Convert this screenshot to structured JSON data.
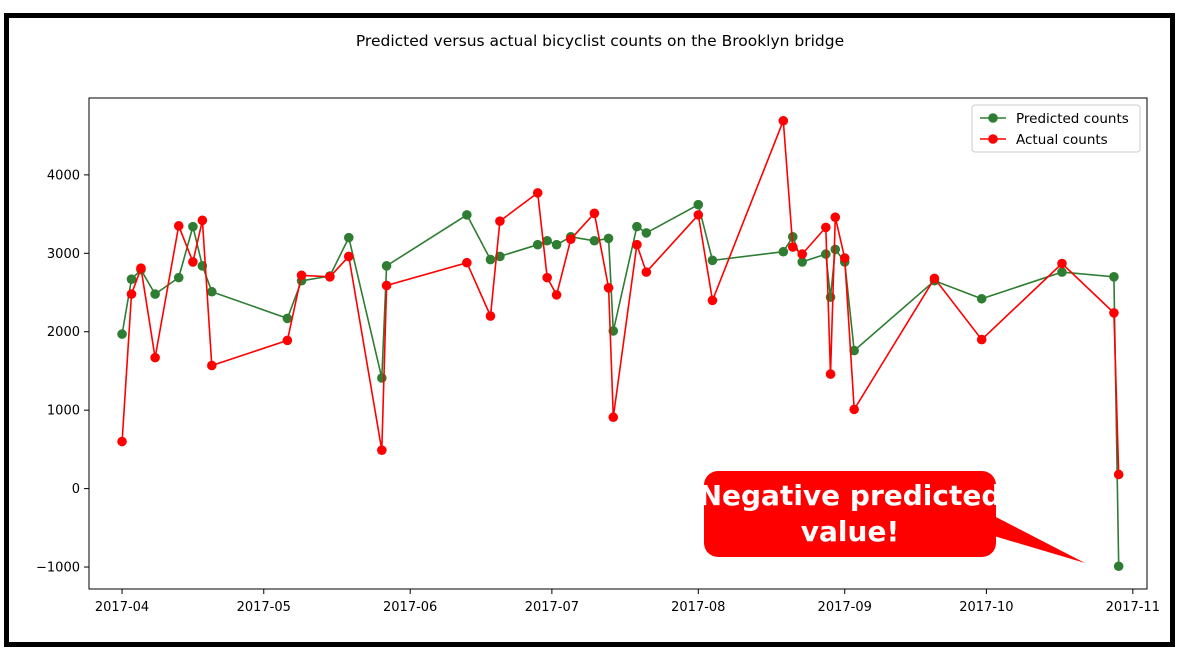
{
  "chart_data": {
    "type": "line",
    "title": "Predicted versus actual bicyclist counts on the Brooklyn bridge",
    "xlabel": "",
    "ylabel": "",
    "x_axis": "date",
    "xlim": [
      "2017-03-25",
      "2017-11-04"
    ],
    "ylim": [
      -1280,
      4980
    ],
    "x_ticks": [
      "2017-04",
      "2017-05",
      "2017-06",
      "2017-07",
      "2017-08",
      "2017-09",
      "2017-10",
      "2017-11"
    ],
    "y_ticks": [
      -1000,
      0,
      1000,
      2000,
      3000,
      4000
    ],
    "grid": false,
    "legend_position": "top-right",
    "series": [
      {
        "name": "Predicted counts",
        "color": "#2e7d32",
        "points": [
          [
            "2017-04-01",
            1970
          ],
          [
            "2017-04-03",
            2670
          ],
          [
            "2017-04-05",
            2790
          ],
          [
            "2017-04-08",
            2480
          ],
          [
            "2017-04-13",
            2690
          ],
          [
            "2017-04-16",
            3340
          ],
          [
            "2017-04-18",
            2840
          ],
          [
            "2017-04-20",
            2510
          ],
          [
            "2017-05-06",
            2170
          ],
          [
            "2017-05-09",
            2650
          ],
          [
            "2017-05-15",
            2710
          ],
          [
            "2017-05-19",
            3200
          ],
          [
            "2017-05-26",
            1410
          ],
          [
            "2017-05-27",
            2840
          ],
          [
            "2017-06-13",
            3490
          ],
          [
            "2017-06-18",
            2920
          ],
          [
            "2017-06-20",
            2960
          ],
          [
            "2017-06-28",
            3110
          ],
          [
            "2017-06-30",
            3160
          ],
          [
            "2017-07-02",
            3110
          ],
          [
            "2017-07-05",
            3210
          ],
          [
            "2017-07-10",
            3160
          ],
          [
            "2017-07-13",
            3190
          ],
          [
            "2017-07-14",
            2010
          ],
          [
            "2017-07-19",
            3340
          ],
          [
            "2017-07-21",
            3260
          ],
          [
            "2017-08-01",
            3620
          ],
          [
            "2017-08-04",
            2910
          ],
          [
            "2017-08-19",
            3020
          ],
          [
            "2017-08-21",
            3210
          ],
          [
            "2017-08-23",
            2890
          ],
          [
            "2017-08-28",
            2990
          ],
          [
            "2017-08-29",
            2440
          ],
          [
            "2017-08-30",
            3050
          ],
          [
            "2017-09-01",
            2890
          ],
          [
            "2017-09-03",
            1760
          ],
          [
            "2017-09-20",
            2650
          ],
          [
            "2017-09-30",
            2420
          ],
          [
            "2017-10-17",
            2760
          ],
          [
            "2017-10-28",
            2700
          ],
          [
            "2017-10-29",
            -990
          ]
        ]
      },
      {
        "name": "Actual counts",
        "color": "#ff0000",
        "points": [
          [
            "2017-04-01",
            600
          ],
          [
            "2017-04-03",
            2480
          ],
          [
            "2017-04-05",
            2810
          ],
          [
            "2017-04-08",
            1670
          ],
          [
            "2017-04-13",
            3350
          ],
          [
            "2017-04-16",
            2890
          ],
          [
            "2017-04-18",
            3420
          ],
          [
            "2017-04-20",
            1570
          ],
          [
            "2017-05-06",
            1890
          ],
          [
            "2017-05-09",
            2720
          ],
          [
            "2017-05-15",
            2700
          ],
          [
            "2017-05-19",
            2960
          ],
          [
            "2017-05-26",
            490
          ],
          [
            "2017-05-27",
            2590
          ],
          [
            "2017-06-13",
            2880
          ],
          [
            "2017-06-18",
            2200
          ],
          [
            "2017-06-20",
            3410
          ],
          [
            "2017-06-28",
            3770
          ],
          [
            "2017-06-30",
            2690
          ],
          [
            "2017-07-02",
            2470
          ],
          [
            "2017-07-05",
            3180
          ],
          [
            "2017-07-10",
            3510
          ],
          [
            "2017-07-13",
            2560
          ],
          [
            "2017-07-14",
            910
          ],
          [
            "2017-07-19",
            3110
          ],
          [
            "2017-07-21",
            2760
          ],
          [
            "2017-08-01",
            3490
          ],
          [
            "2017-08-04",
            2400
          ],
          [
            "2017-08-19",
            4690
          ],
          [
            "2017-08-21",
            3080
          ],
          [
            "2017-08-23",
            2990
          ],
          [
            "2017-08-28",
            3330
          ],
          [
            "2017-08-29",
            1460
          ],
          [
            "2017-08-30",
            3460
          ],
          [
            "2017-09-01",
            2940
          ],
          [
            "2017-09-03",
            1010
          ],
          [
            "2017-09-20",
            2680
          ],
          [
            "2017-09-30",
            1900
          ],
          [
            "2017-10-17",
            2870
          ],
          [
            "2017-10-28",
            2240
          ],
          [
            "2017-10-29",
            180
          ]
        ]
      }
    ],
    "annotation": {
      "line1": "Negative predicted",
      "line2": "value!",
      "color": "#ff0000"
    }
  }
}
